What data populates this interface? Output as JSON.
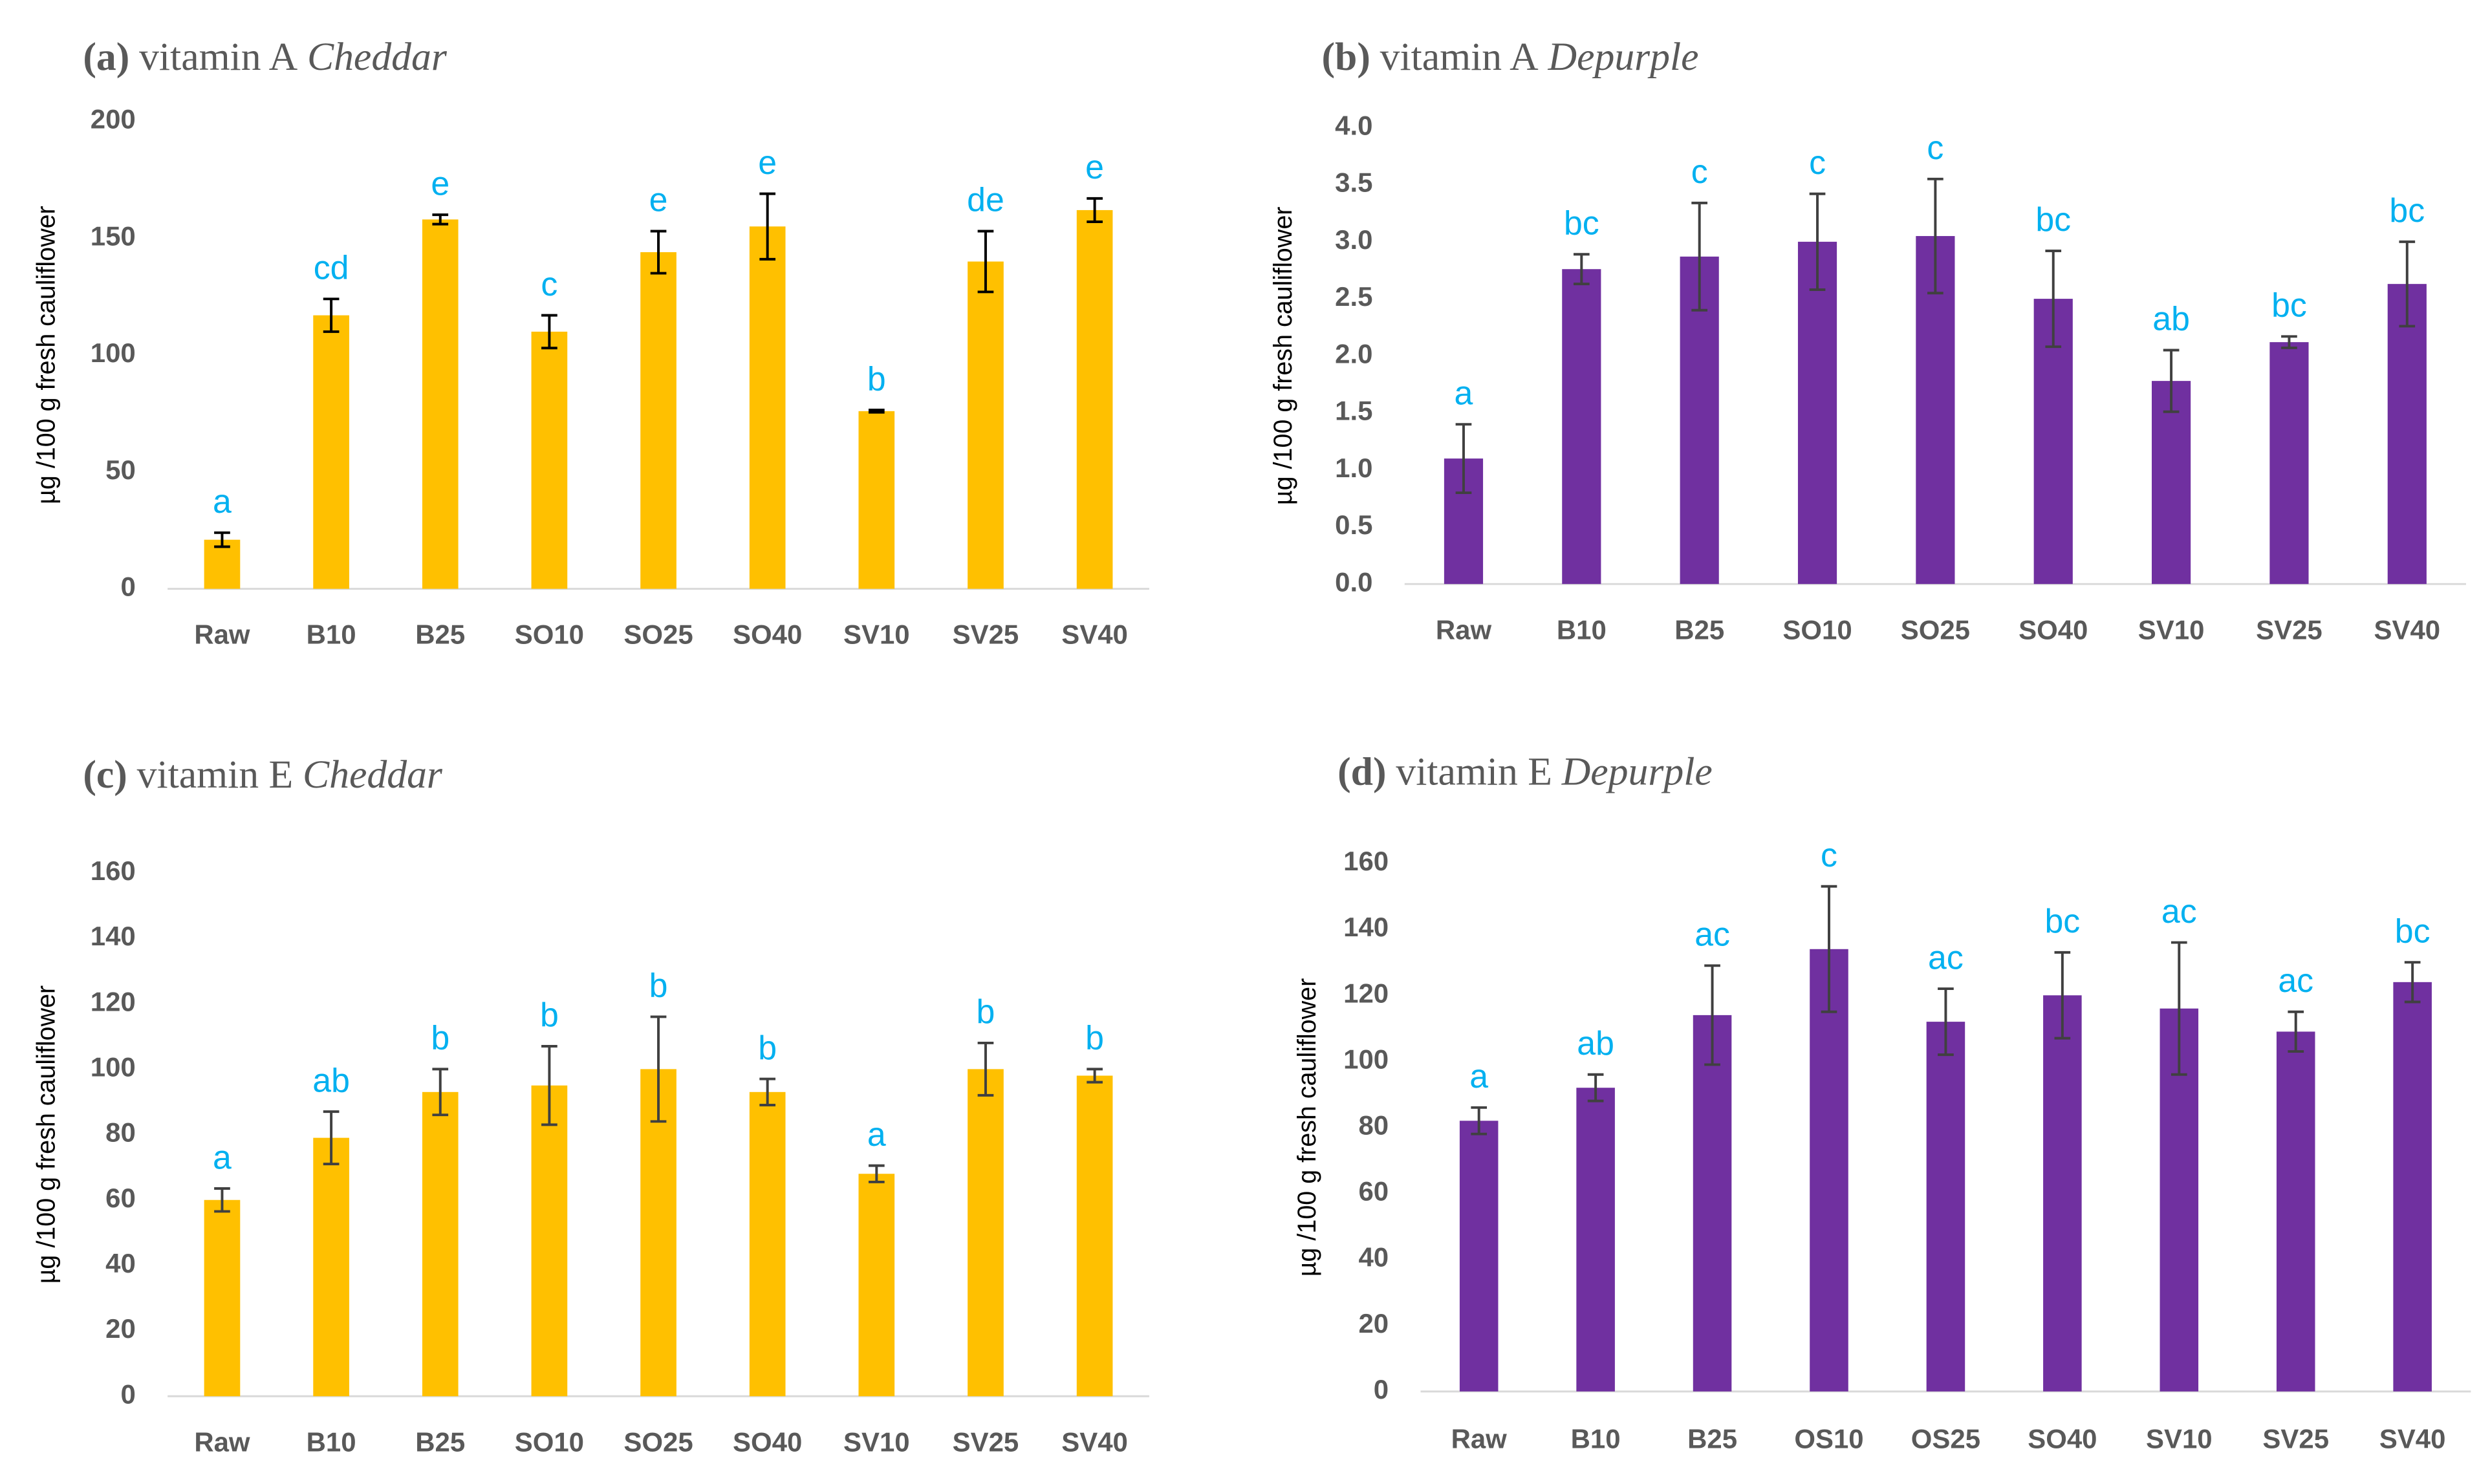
{
  "chart_data": [
    {
      "type": "bar",
      "title_label": "(a)",
      "title": "vitamin A",
      "title_subject": "Cheddar",
      "ylabel": "µg /100 g fresh cauliflower",
      "categories": [
        "Raw",
        "B10",
        "B25",
        "SO10",
        "SO25",
        "SO40",
        "SV10",
        "SV25",
        "SV40"
      ],
      "values": [
        21,
        117,
        158,
        110,
        144,
        155,
        76,
        140,
        162
      ],
      "errors": [
        3,
        7,
        2,
        7,
        9,
        14,
        0.5,
        13,
        5
      ],
      "annotations": [
        "a",
        "cd",
        "e",
        "c",
        "e",
        "e",
        "b",
        "de",
        "e"
      ],
      "color": "#FFC000",
      "error_color": "#000000",
      "ylim": [
        0,
        200
      ],
      "yticks": [
        0,
        50,
        100,
        150,
        200
      ]
    },
    {
      "type": "bar",
      "title_label": "(b)",
      "title": "vitamin A",
      "title_subject": "Depurple",
      "ylabel": "µg /100 g fresh cauliflower",
      "categories": [
        "Raw",
        "B10",
        "B25",
        "SO10",
        "SO25",
        "SO40",
        "SV10",
        "SV25",
        "SV40"
      ],
      "values": [
        1.1,
        2.76,
        2.87,
        3.0,
        3.05,
        2.5,
        1.78,
        2.12,
        2.63
      ],
      "errors": [
        0.3,
        0.13,
        0.47,
        0.42,
        0.5,
        0.42,
        0.27,
        0.05,
        0.37
      ],
      "annotations": [
        "a",
        "bc",
        "c",
        "c",
        "c",
        "bc",
        "ab",
        "bc",
        "bc"
      ],
      "color": "#7030A0",
      "error_color": "#404040",
      "ylim": [
        0,
        4
      ],
      "yticks": [
        {
          "value": 0,
          "label": "0.0"
        },
        0.5,
        {
          "value": 1,
          "label": "1.0"
        },
        1.5,
        {
          "value": 2,
          "label": "2.0"
        },
        2.5,
        {
          "value": 3,
          "label": "3.0"
        },
        3.5,
        {
          "value": 4,
          "label": "4.0"
        }
      ]
    },
    {
      "type": "bar",
      "title_label": "(c)",
      "title": "vitamin E",
      "title_subject": "Cheddar",
      "ylabel": "µg /100 g fresh cauliflower",
      "categories": [
        "Raw",
        "B10",
        "B25",
        "SO10",
        "SO25",
        "SO40",
        "SV10",
        "SV25",
        "SV40"
      ],
      "values": [
        60,
        79,
        93,
        95,
        100,
        93,
        68,
        100,
        98
      ],
      "errors": [
        3.5,
        8,
        7,
        12,
        16,
        4,
        2.5,
        8,
        2
      ],
      "annotations": [
        "a",
        "ab",
        "b",
        "b",
        "b",
        "b",
        "a",
        "b",
        "b"
      ],
      "color": "#FFC000",
      "error_color": "#404040",
      "ylim": [
        0,
        160
      ],
      "yticks": [
        0,
        20,
        40,
        60,
        80,
        100,
        120,
        140,
        160
      ]
    },
    {
      "type": "bar",
      "title_label": "(d)",
      "title": "vitamin E",
      "title_subject": "Depurple",
      "ylabel": "µg /100 g fresh cauliflower",
      "categories": [
        "Raw",
        "B10",
        "B25",
        "OS10",
        "OS25",
        "SO40",
        "SV10",
        "SV25",
        "SV40"
      ],
      "values": [
        82,
        92,
        114,
        134,
        112,
        120,
        116,
        109,
        124
      ],
      "errors": [
        4,
        4,
        15,
        19,
        10,
        13,
        20,
        6,
        6
      ],
      "annotations": [
        "a",
        "ab",
        "ac",
        "c",
        "ac",
        "bc",
        "ac",
        "ac",
        "bc"
      ],
      "color": "#7030A0",
      "error_color": "#404040",
      "ylim": [
        0,
        160
      ],
      "yticks": [
        0,
        20,
        40,
        60,
        80,
        100,
        120,
        140,
        160
      ]
    }
  ]
}
